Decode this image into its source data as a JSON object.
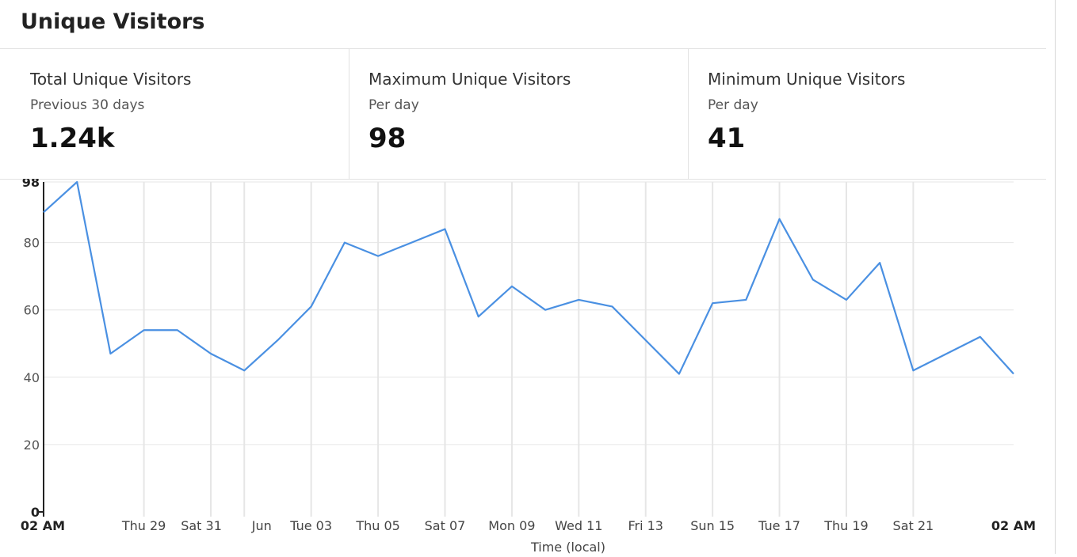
{
  "header": {
    "title": "Unique Visitors"
  },
  "stats": [
    {
      "label": "Total Unique Visitors",
      "sub": "Previous 30 days",
      "value": "1.24k"
    },
    {
      "label": "Maximum Unique Visitors",
      "sub": "Per day",
      "value": "98"
    },
    {
      "label": "Minimum Unique Visitors",
      "sub": "Per day",
      "value": "41"
    }
  ],
  "colors": {
    "line": "#4a90e2",
    "grid": "#e6e6e6",
    "axis": "#222222"
  },
  "chart_data": {
    "type": "line",
    "xlabel": "Time (local)",
    "ylabel": "",
    "ylim": [
      0,
      98
    ],
    "y_ticks": [
      "0",
      "20",
      "40",
      "60",
      "80",
      "98"
    ],
    "x_ticks": [
      "02 AM",
      "Thu 29",
      "Sat 31",
      "Jun",
      "Tue 03",
      "Thu 05",
      "Sat 07",
      "Mon 09",
      "Wed 11",
      "Fri 13",
      "Sun 15",
      "Tue 17",
      "Thu 19",
      "Sat 21",
      "02 AM"
    ],
    "series": [
      {
        "values": [
          89,
          98,
          47,
          54,
          54,
          47,
          42,
          51,
          61,
          80,
          76,
          80,
          84,
          58,
          67,
          60,
          63,
          61,
          51,
          41,
          62,
          63,
          87,
          69,
          63,
          74,
          42,
          47,
          52,
          41
        ]
      }
    ],
    "grid": true
  }
}
